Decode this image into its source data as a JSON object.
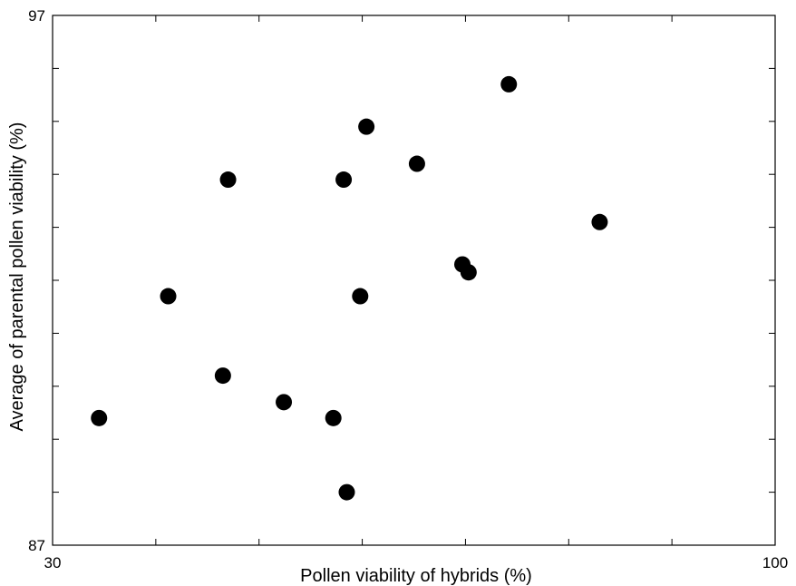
{
  "chart_data": {
    "type": "scatter",
    "title": "",
    "xlabel": "Pollen viability of hybrids (%)",
    "ylabel": "Average of parental pollen viability (%)",
    "xlim": [
      30,
      100
    ],
    "ylim": [
      87,
      97
    ],
    "x_tick_labels": [
      "30",
      "100"
    ],
    "y_tick_labels": [
      "87",
      "97"
    ],
    "grid": false,
    "marker_color": "#000000",
    "series": [
      {
        "points": [
          {
            "x": 34.5,
            "y": 89.4
          },
          {
            "x": 41.2,
            "y": 91.7
          },
          {
            "x": 46.5,
            "y": 90.2
          },
          {
            "x": 47.0,
            "y": 93.9
          },
          {
            "x": 52.4,
            "y": 89.7
          },
          {
            "x": 57.2,
            "y": 89.4
          },
          {
            "x": 58.2,
            "y": 93.9
          },
          {
            "x": 58.5,
            "y": 88.0
          },
          {
            "x": 59.8,
            "y": 91.7
          },
          {
            "x": 60.4,
            "y": 94.9
          },
          {
            "x": 65.3,
            "y": 94.2
          },
          {
            "x": 69.7,
            "y": 92.3
          },
          {
            "x": 70.3,
            "y": 92.15
          },
          {
            "x": 74.2,
            "y": 95.7
          },
          {
            "x": 83.0,
            "y": 93.1
          }
        ]
      }
    ]
  }
}
